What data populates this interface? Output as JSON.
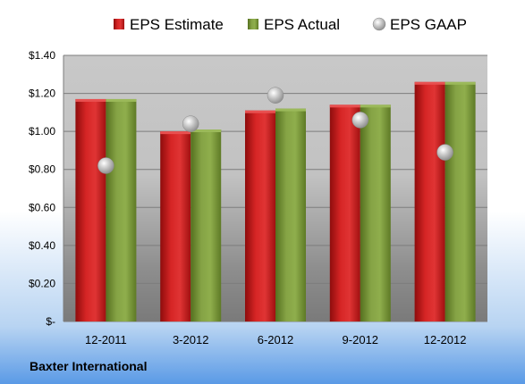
{
  "chart_data": {
    "type": "bar",
    "categories": [
      "12-2011",
      "3-2012",
      "6-2012",
      "9-2012",
      "12-2012"
    ],
    "series": [
      {
        "name": "EPS Estimate",
        "kind": "bar",
        "color": "#cc1f1f",
        "values": [
          1.17,
          1.0,
          1.11,
          1.14,
          1.26
        ]
      },
      {
        "name": "EPS Actual",
        "kind": "bar",
        "color": "#7a9a3a",
        "values": [
          1.17,
          1.01,
          1.12,
          1.14,
          1.26
        ]
      },
      {
        "name": "EPS GAAP",
        "kind": "point",
        "color": "#a8a8a8",
        "values": [
          0.82,
          1.04,
          1.19,
          1.06,
          0.89
        ]
      }
    ],
    "ylim": [
      0,
      1.4
    ],
    "yticks": [
      0,
      0.2,
      0.4,
      0.6,
      0.8,
      1.0,
      1.2,
      1.4
    ],
    "ytick_labels": [
      "$-",
      "$0.20",
      "$0.40",
      "$0.60",
      "$0.80",
      "$1.00",
      "$1.20",
      "$1.40"
    ],
    "grid": true,
    "legend_position": "top",
    "xlabel": "",
    "ylabel": "",
    "title": ""
  },
  "company_name": "Baxter International"
}
